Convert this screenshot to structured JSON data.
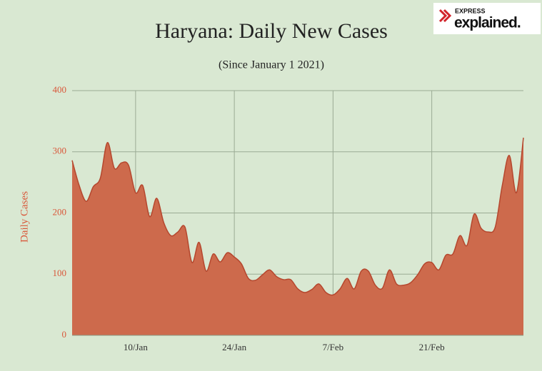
{
  "logo": {
    "brand": "EXPRESS",
    "name": "explained."
  },
  "chart_data": {
    "type": "area",
    "title": "Haryana: Daily New Cases",
    "subtitle": "(Since January 1 2021)",
    "y_label": "Daily Cases",
    "categories": [
      null,
      null,
      null,
      null,
      null,
      null,
      null,
      null,
      null,
      "10/Jan",
      null,
      null,
      null,
      null,
      null,
      null,
      null,
      null,
      null,
      null,
      null,
      null,
      null,
      "24/Jan",
      null,
      null,
      null,
      null,
      null,
      null,
      null,
      null,
      null,
      null,
      null,
      null,
      null,
      "7/Feb",
      null,
      null,
      null,
      null,
      null,
      null,
      null,
      null,
      null,
      null,
      null,
      null,
      null,
      "21/Feb",
      null,
      null,
      null,
      null,
      null,
      null,
      null,
      null,
      null,
      null,
      null,
      null,
      null
    ],
    "values": [
      286,
      245,
      219,
      243,
      257,
      315,
      273,
      282,
      278,
      233,
      245,
      194,
      224,
      184,
      163,
      169,
      177,
      119,
      152,
      105,
      133,
      120,
      135,
      128,
      117,
      93,
      90,
      99,
      107,
      96,
      91,
      91,
      76,
      70,
      75,
      84,
      70,
      66,
      76,
      93,
      76,
      105,
      105,
      82,
      77,
      107,
      84,
      82,
      86,
      99,
      117,
      119,
      107,
      131,
      133,
      163,
      147,
      198,
      175,
      169,
      177,
      245,
      294,
      233,
      323
    ],
    "color": "#cd6a4c",
    "line_color": "#b5472e",
    "ylim": [
      0,
      400
    ],
    "yticks": [
      0,
      100,
      200,
      300,
      400
    ],
    "grid": true
  }
}
